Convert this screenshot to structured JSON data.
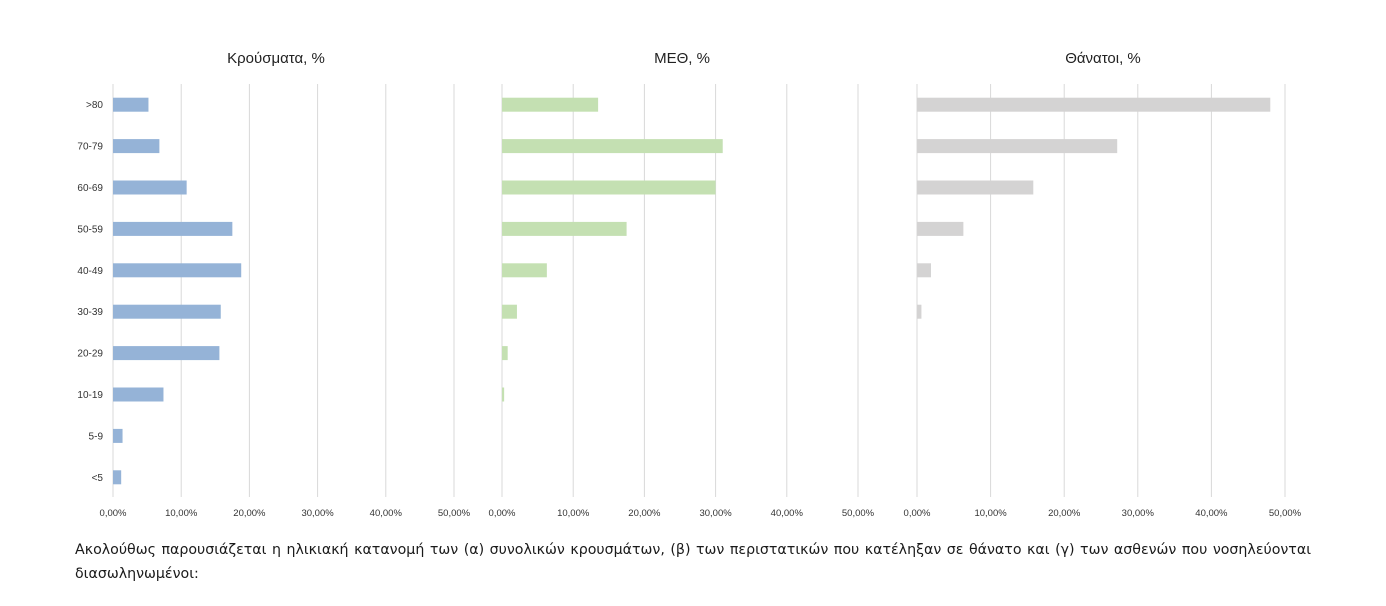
{
  "chart_data": [
    {
      "type": "bar",
      "orientation": "horizontal",
      "title": "Κρούσματα, %",
      "categories": [
        ">80",
        "70-79",
        "60-69",
        "50-59",
        "40-49",
        "30-39",
        "20-29",
        "10-19",
        "5-9",
        "<5"
      ],
      "values": [
        5.2,
        6.8,
        10.8,
        17.5,
        18.8,
        15.8,
        15.6,
        7.4,
        1.4,
        1.2
      ],
      "xlim": [
        0,
        50
      ],
      "xticks": [
        "0,00%",
        "10,00%",
        "20,00%",
        "30,00%",
        "40,00%",
        "50,00%"
      ],
      "color": "#95b3d7",
      "grid": true
    },
    {
      "type": "bar",
      "orientation": "horizontal",
      "title": "ΜΕΘ, %",
      "categories": [
        ">80",
        "70-79",
        "60-69",
        "50-59",
        "40-49",
        "30-39",
        "20-29",
        "10-19",
        "5-9",
        "<5"
      ],
      "values": [
        13.5,
        31.0,
        30.0,
        17.5,
        6.3,
        2.1,
        0.8,
        0.3,
        0,
        0
      ],
      "xlim": [
        0,
        50
      ],
      "xticks": [
        "0,00%",
        "10,00%",
        "20,00%",
        "30,00%",
        "40,00%",
        "50,00%"
      ],
      "color": "#c4e0b2",
      "grid": true
    },
    {
      "type": "bar",
      "orientation": "horizontal",
      "title": "Θάνατοι, %",
      "categories": [
        ">80",
        "70-79",
        "60-69",
        "50-59",
        "40-49",
        "30-39",
        "20-29",
        "10-19",
        "5-9",
        "<5"
      ],
      "values": [
        48.0,
        27.2,
        15.8,
        6.3,
        1.9,
        0.6,
        0,
        0,
        0,
        0
      ],
      "xlim": [
        0,
        50
      ],
      "xticks": [
        "0,00%",
        "10,00%",
        "20,00%",
        "30,00%",
        "40,00%",
        "50,00%"
      ],
      "color": "#d4d3d3",
      "grid": true
    }
  ],
  "caption": "Ακολούθως παρουσιάζεται η ηλικιακή κατανομή των (α) συνολικών κρουσμάτων, (β) των περιστατικών που κατέληξαν σε θάνατο και (γ) των ασθενών που νοσηλεύονται διασωληνωμένοι:"
}
